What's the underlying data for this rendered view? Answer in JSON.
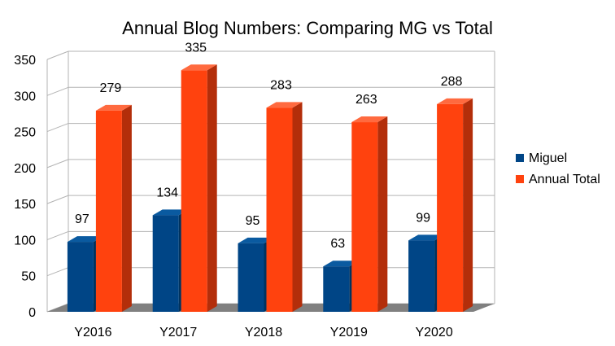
{
  "chart_data": {
    "type": "bar",
    "title": "Annual Blog Numbers: Comparing MG vs Total",
    "xlabel": "",
    "ylabel": "",
    "categories": [
      "Y2016",
      "Y2017",
      "Y2018",
      "Y2019",
      "Y2020"
    ],
    "series": [
      {
        "name": "Miguel",
        "values": [
          97,
          134,
          95,
          63,
          99
        ],
        "color": "#004586",
        "side_color": "#00335f",
        "top_color": "#0a5aa0"
      },
      {
        "name": "Annual Total",
        "values": [
          279,
          335,
          283,
          263,
          288
        ],
        "color": "#ff420e",
        "side_color": "#b32e0a",
        "top_color": "#ff6a3f"
      }
    ],
    "yticks": [
      0,
      50,
      100,
      150,
      200,
      250,
      300,
      350
    ],
    "ylim": [
      0,
      350
    ],
    "grid": true,
    "legend_position": "right",
    "style": "3d-column"
  }
}
